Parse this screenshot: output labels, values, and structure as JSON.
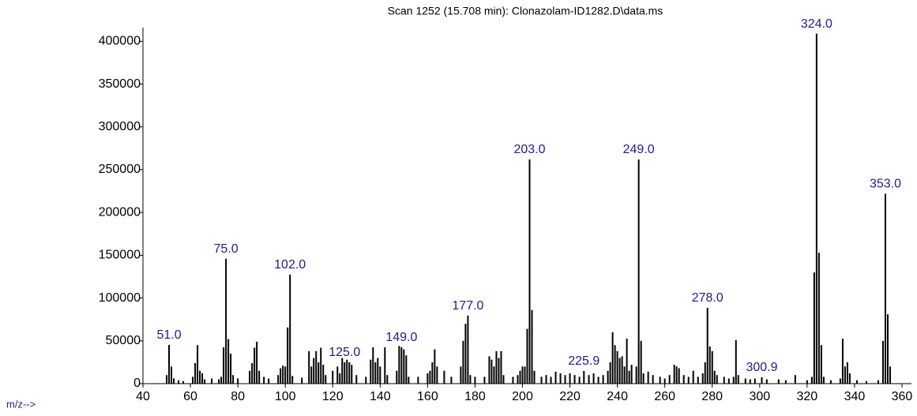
{
  "chart_data": {
    "type": "bar",
    "title": "Scan 1252 (15.708 min): Clonazolam-ID1282.D\\data.ms",
    "xlabel": "m/z-->",
    "x": [
      50,
      51,
      52,
      53,
      55,
      57,
      61,
      62,
      63,
      64,
      65,
      66,
      69,
      72,
      73,
      74,
      75,
      76,
      77,
      78,
      80,
      85,
      86,
      87,
      88,
      89,
      91,
      93,
      97,
      98,
      99,
      100,
      101,
      102,
      103,
      107,
      110,
      111,
      112,
      113,
      114,
      115,
      116,
      117,
      120,
      122,
      123,
      124,
      125,
      126,
      127,
      128,
      130,
      134,
      136,
      137,
      138,
      139,
      140,
      142,
      143,
      147,
      148,
      149,
      150,
      151,
      152,
      156,
      160,
      161,
      162,
      163,
      164,
      167,
      170,
      174,
      175,
      176,
      177,
      178,
      180,
      184,
      186,
      187,
      188,
      189,
      190,
      191,
      192,
      196,
      198,
      199,
      200,
      201,
      202,
      203,
      204,
      205,
      208,
      210,
      212,
      214,
      216,
      218,
      220,
      222,
      224,
      225.9,
      228,
      230,
      232,
      234,
      236,
      237,
      238,
      239,
      240,
      241,
      242,
      243,
      244,
      245,
      246,
      248,
      249,
      250,
      251,
      253,
      255,
      258,
      260,
      262,
      264,
      265,
      266,
      268,
      270,
      272,
      274,
      276,
      277,
      278,
      279,
      280,
      281,
      282,
      285,
      287,
      289,
      290,
      291,
      294,
      296,
      298,
      300.9,
      303,
      308,
      311,
      315,
      320,
      322,
      323,
      324,
      325,
      326,
      327,
      330,
      334,
      335,
      336,
      337,
      338,
      341,
      345,
      350,
      352,
      353,
      354,
      355
    ],
    "values": [
      10000,
      45300,
      20000,
      6000,
      4000,
      3000,
      8000,
      24000,
      45000,
      15000,
      12000,
      5000,
      6000,
      5000,
      8000,
      42500,
      146000,
      52000,
      35000,
      10000,
      6000,
      15000,
      24000,
      42000,
      49000,
      15000,
      8000,
      6000,
      10000,
      18000,
      21000,
      20000,
      65600,
      127500,
      9000,
      7000,
      38000,
      20000,
      30000,
      38000,
      25000,
      42000,
      22000,
      10000,
      15000,
      20000,
      12000,
      30000,
      25000,
      28000,
      25000,
      22000,
      10000,
      8000,
      28000,
      42500,
      25000,
      30000,
      20000,
      42500,
      10000,
      15000,
      44000,
      42500,
      40000,
      33000,
      8000,
      8000,
      12000,
      15000,
      25000,
      40000,
      20000,
      15000,
      8000,
      20000,
      50000,
      70000,
      79500,
      10000,
      8000,
      8000,
      32000,
      28000,
      20000,
      38000,
      30000,
      38000,
      10000,
      8000,
      10000,
      15000,
      20000,
      20000,
      64000,
      262000,
      86000,
      15000,
      8000,
      10000,
      8000,
      14000,
      12000,
      10000,
      12000,
      10000,
      8000,
      14800,
      10000,
      12000,
      8000,
      10000,
      15000,
      25000,
      60000,
      45000,
      38000,
      30000,
      32000,
      20000,
      52700,
      15000,
      22000,
      20000,
      262000,
      50000,
      12000,
      14000,
      10000,
      8000,
      6000,
      10000,
      22000,
      20000,
      18000,
      10000,
      8000,
      15000,
      8000,
      12000,
      25000,
      88700,
      43400,
      38000,
      15000,
      10000,
      8000,
      6000,
      8000,
      50800,
      10000,
      6000,
      5000,
      6000,
      7400,
      5000,
      5000,
      4000,
      10000,
      4000,
      8000,
      130000,
      409000,
      153000,
      45000,
      8000,
      4000,
      6000,
      52600,
      20000,
      25000,
      12000,
      4000,
      3000,
      4000,
      50000,
      222000,
      81000,
      20000
    ],
    "color": "#000000",
    "label_color": "#1c1c96",
    "peak_labels": [
      {
        "x": 51,
        "label": "51.0"
      },
      {
        "x": 75,
        "label": "75.0"
      },
      {
        "x": 102,
        "label": "102.0"
      },
      {
        "x": 125,
        "label": "125.0"
      },
      {
        "x": 149,
        "label": "149.0"
      },
      {
        "x": 177,
        "label": "177.0"
      },
      {
        "x": 203,
        "label": "203.0"
      },
      {
        "x": 225.9,
        "label": "225.9"
      },
      {
        "x": 249,
        "label": "249.0"
      },
      {
        "x": 278,
        "label": "278.0"
      },
      {
        "x": 300.9,
        "label": "300.9"
      },
      {
        "x": 324,
        "label": "324.0"
      },
      {
        "x": 353,
        "label": "353.0"
      }
    ],
    "xlim": [
      40,
      364
    ],
    "xticks": [
      40,
      60,
      80,
      100,
      120,
      140,
      160,
      180,
      200,
      220,
      240,
      260,
      280,
      300,
      320,
      340,
      360
    ],
    "ylim": [
      0,
      416000
    ],
    "yticks": [
      0,
      50000,
      100000,
      150000,
      200000,
      250000,
      300000,
      350000,
      400000
    ]
  }
}
